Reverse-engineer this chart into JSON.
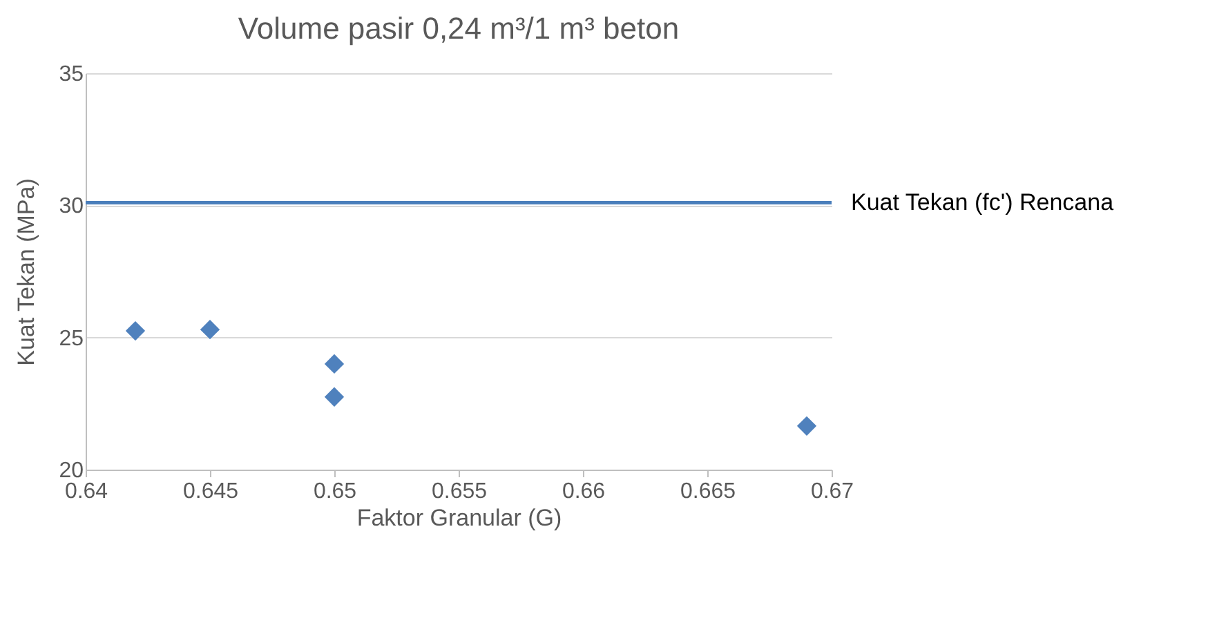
{
  "chart_data": {
    "type": "scatter",
    "title": "Volume pasir 0,24 m³/1 m³ beton",
    "xlabel": "Faktor Granular (G)",
    "ylabel": "Kuat Tekan (MPa)",
    "x": [
      0.642,
      0.645,
      0.65,
      0.65,
      0.669
    ],
    "values": [
      25.25,
      25.3,
      24.0,
      22.75,
      21.65
    ],
    "color": "#4f81bd",
    "marker": "diamond",
    "xlim": [
      0.64,
      0.67
    ],
    "xticks": [
      0.64,
      0.645,
      0.65,
      0.655,
      0.66,
      0.665,
      0.67
    ],
    "ylim": [
      20,
      35
    ],
    "yticks": [
      20,
      25,
      30,
      35
    ],
    "grid": "y",
    "ref_lines": [
      {
        "axis": "y",
        "value": 30.1,
        "label": "Kuat Tekan (fc') Rencana",
        "color": "#4a7ebb"
      }
    ]
  }
}
